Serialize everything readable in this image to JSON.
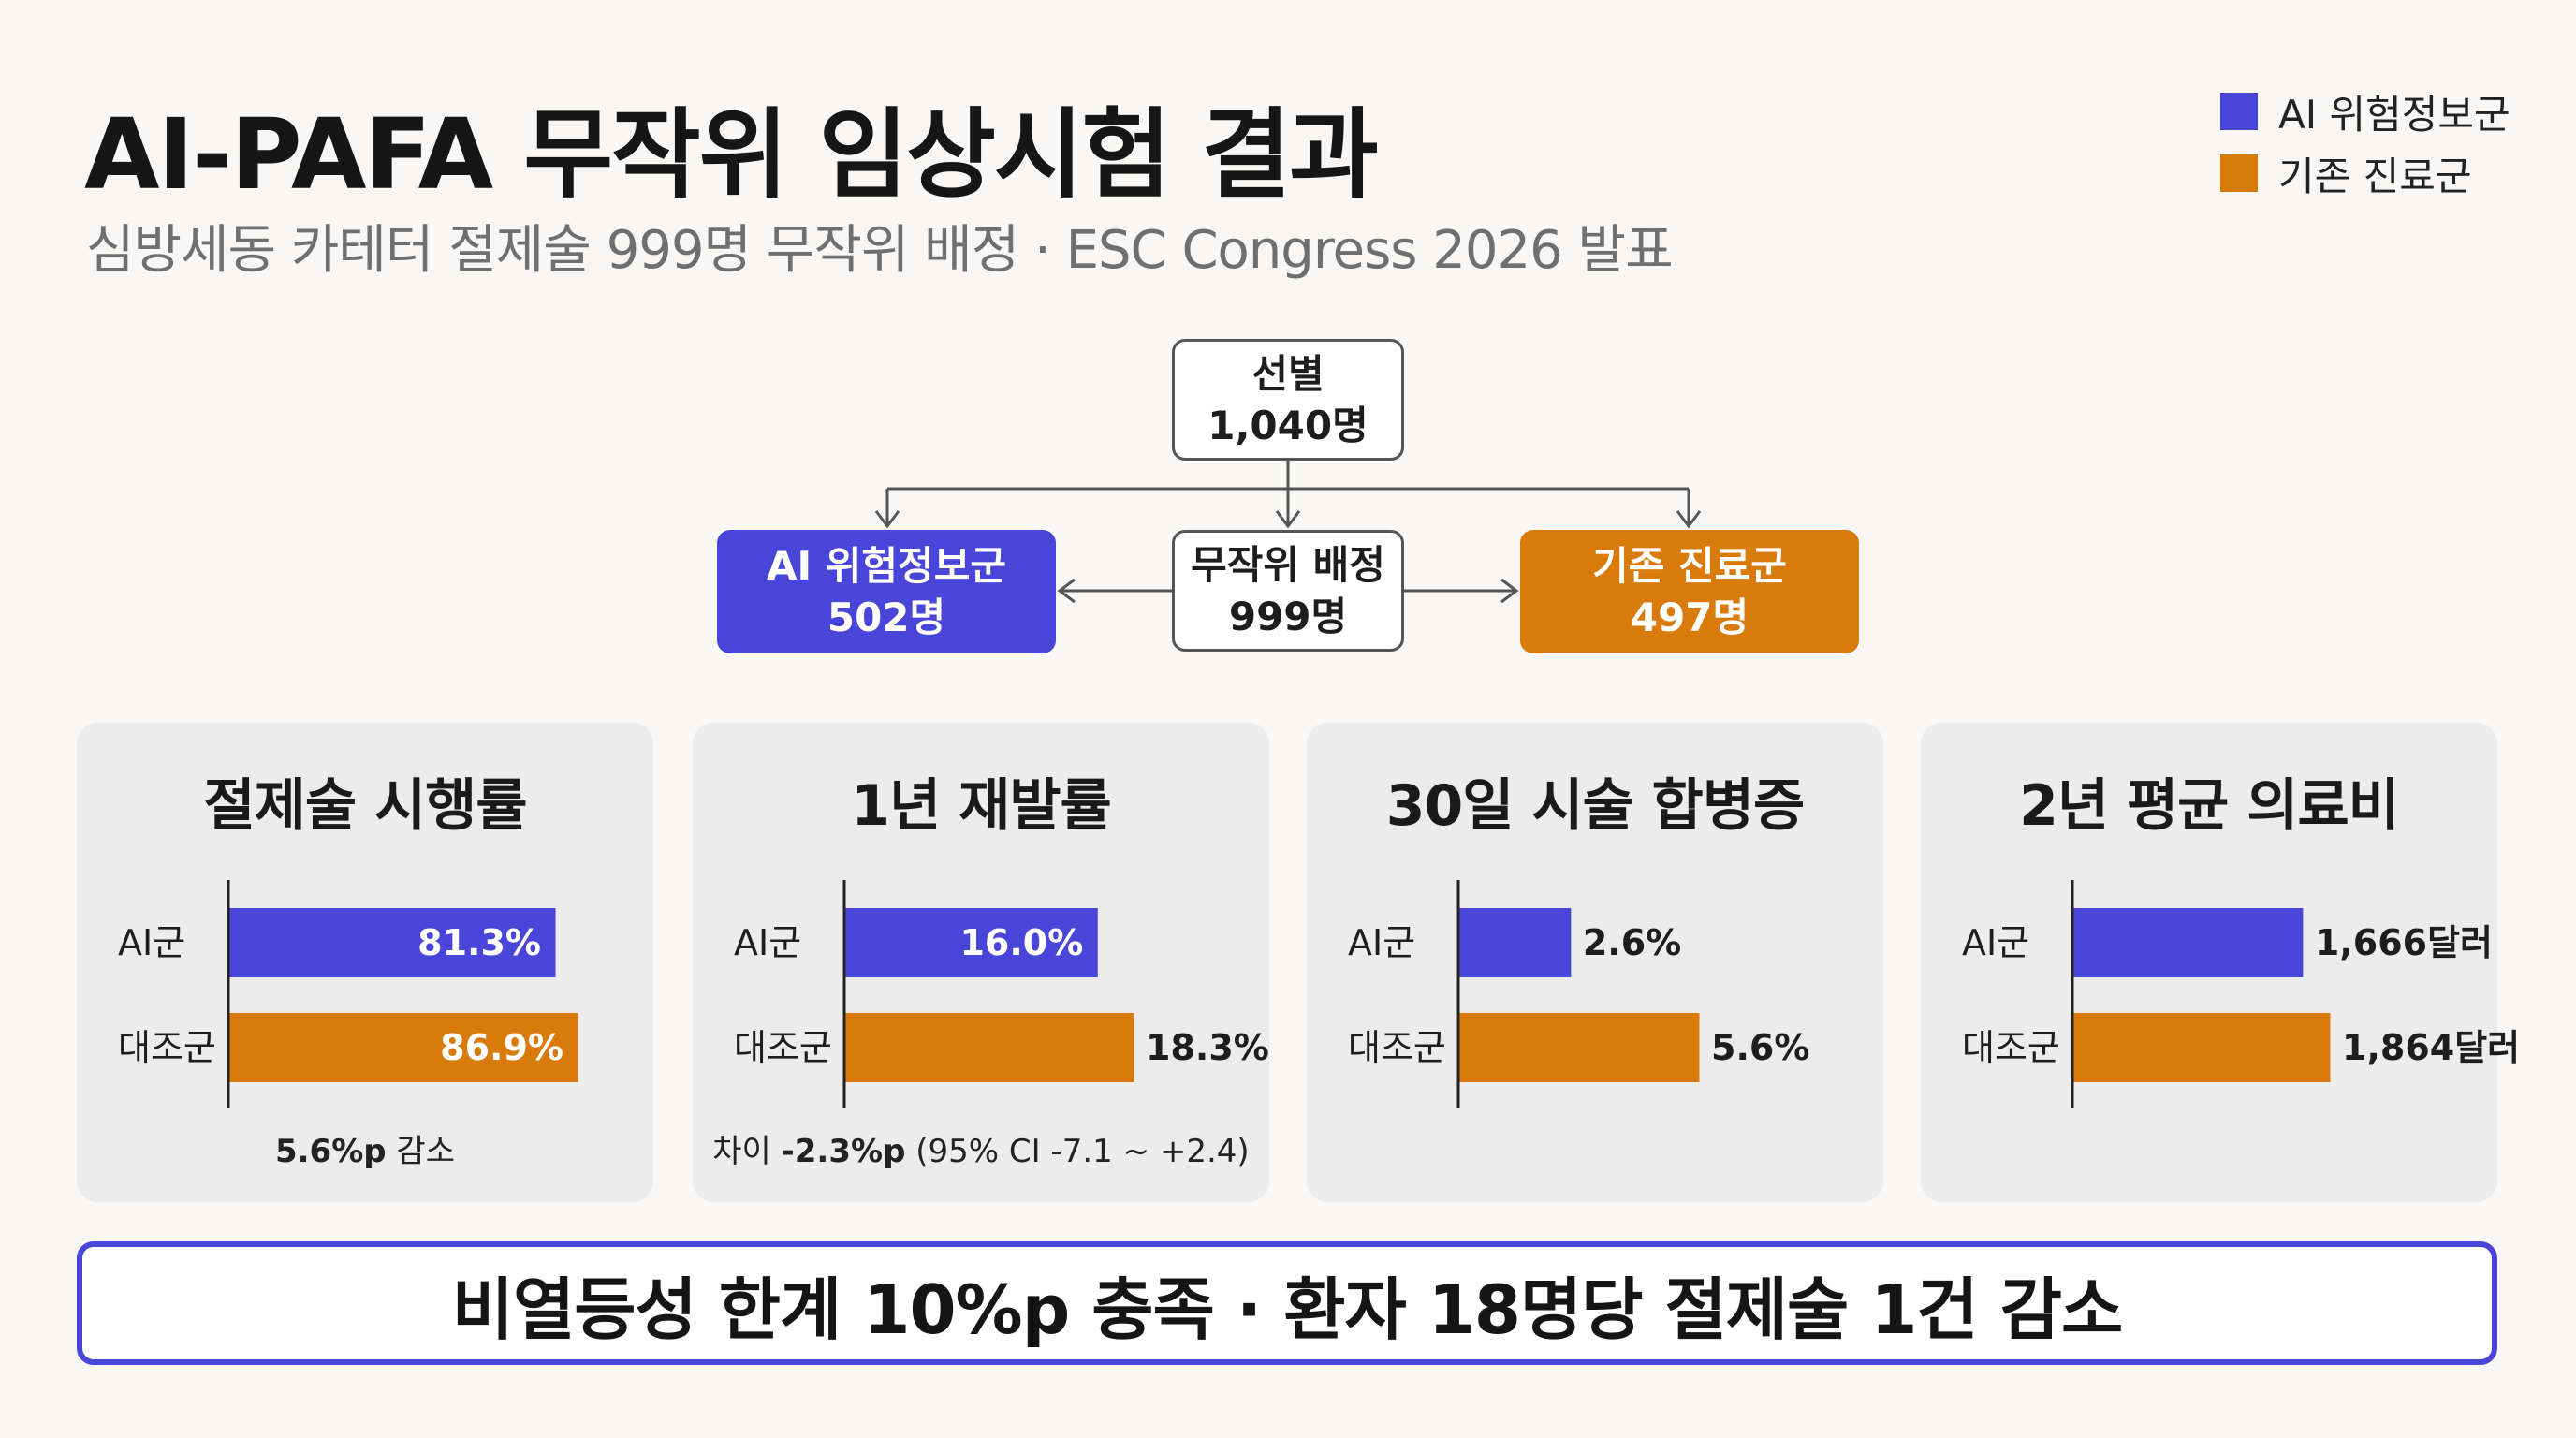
{
  "title": "AI-PAFA 무작위 임상시험 결과",
  "subtitle": "심방세동 카테터 절제술 999명 무작위 배정 · ESC Congress 2026 발표",
  "colors": {
    "ai": "#4a45d9",
    "standard": "#d97a0c"
  },
  "legend": [
    {
      "label": "AI 위험정보군",
      "color": "#4a45d9"
    },
    {
      "label": "기존 진료군",
      "color": "#d97a0c"
    }
  ],
  "flow": {
    "screening": {
      "line1": "선별",
      "line2": "1,040명"
    },
    "randomized": {
      "line1": "무작위 배정",
      "line2": "999명"
    },
    "ai_group": {
      "line1": "AI 위험정보군",
      "line2": "502명"
    },
    "standard_group": {
      "line1": "기존 진료군",
      "line2": "497명"
    }
  },
  "chart_data": [
    {
      "type": "bar",
      "title": "절제술 시행률",
      "categories": [
        "AI군",
        "대조군"
      ],
      "values": [
        81.3,
        86.9
      ],
      "value_labels": [
        "81.3%",
        "86.9%"
      ],
      "label_inside": true,
      "note_bold": "5.6%p",
      "note_text": " 감소"
    },
    {
      "type": "bar",
      "title": "1년 재발률",
      "categories": [
        "AI군",
        "대조군"
      ],
      "values": [
        16.0,
        18.3
      ],
      "value_labels": [
        "16.0%",
        "18.3%"
      ],
      "label_inside": [
        true,
        false
      ],
      "note_prefix": "차이 ",
      "note_bold": "-2.3%p",
      "note_text": " (95% CI -7.1 ~ +2.4)"
    },
    {
      "type": "bar",
      "title": "30일 시술 합병증",
      "categories": [
        "AI군",
        "대조군"
      ],
      "values": [
        2.6,
        5.6
      ],
      "value_labels": [
        "2.6%",
        "5.6%"
      ],
      "label_inside": false
    },
    {
      "type": "bar",
      "title": "2년 평균 의료비",
      "categories": [
        "AI군",
        "대조군"
      ],
      "values": [
        1666,
        1864
      ],
      "value_labels": [
        "1,666달러",
        "1,864달러"
      ],
      "label_inside": false
    }
  ],
  "conclusion": "비열등성 한계 10%p 충족 · 환자 18명당 절제술 1건 감소"
}
